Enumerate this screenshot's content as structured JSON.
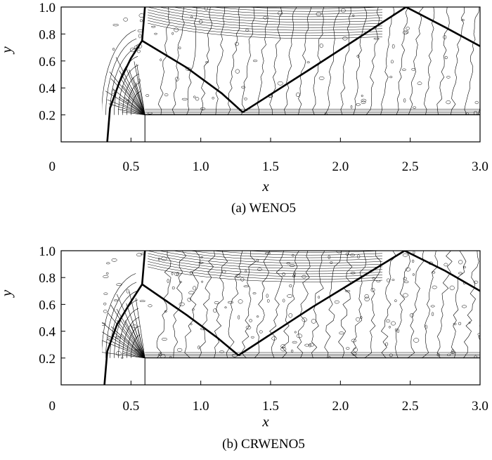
{
  "chart_data": [
    {
      "type": "contour",
      "title": "(a) WENO5",
      "xlabel": "x",
      "ylabel": "y",
      "xlim": [
        0,
        3.0
      ],
      "ylim": [
        0,
        1.0
      ],
      "xticks": [
        "0",
        "0.5",
        "1.0",
        "1.5",
        "2.0",
        "2.5",
        "3.0"
      ],
      "xtick_values": [
        0,
        0.5,
        1.0,
        1.5,
        2.0,
        2.5,
        3.0
      ],
      "yticks": [
        "0.2",
        "0.4",
        "0.6",
        "0.8",
        "1.0"
      ],
      "ytick_values": [
        0.2,
        0.4,
        0.6,
        0.8,
        1.0
      ],
      "step": {
        "x": 0.6,
        "height": 0.2
      },
      "shocks": [
        [
          [
            0.33,
            0.0
          ],
          [
            0.35,
            0.25
          ],
          [
            0.42,
            0.45
          ],
          [
            0.5,
            0.62
          ],
          [
            0.58,
            0.75
          ],
          [
            0.6,
            1.0
          ]
        ],
        [
          [
            0.58,
            0.75
          ],
          [
            0.9,
            0.55
          ],
          [
            1.15,
            0.36
          ],
          [
            1.3,
            0.22
          ]
        ],
        [
          [
            1.3,
            0.22
          ],
          [
            1.8,
            0.55
          ],
          [
            2.47,
            1.0
          ]
        ],
        [
          [
            2.47,
            1.0
          ],
          [
            2.75,
            0.85
          ],
          [
            3.0,
            0.71
          ]
        ]
      ],
      "noise": 0.2
    },
    {
      "type": "contour",
      "title": "(b) CRWENO5",
      "xlabel": "x",
      "ylabel": "y",
      "xlim": [
        0,
        3.0
      ],
      "ylim": [
        0,
        1.0
      ],
      "xticks": [
        "0",
        "0.5",
        "1.0",
        "1.5",
        "2.0",
        "2.5",
        "3.0"
      ],
      "xtick_values": [
        0,
        0.5,
        1.0,
        1.5,
        2.0,
        2.5,
        3.0
      ],
      "yticks": [
        "0.2",
        "0.4",
        "0.6",
        "0.8",
        "1.0"
      ],
      "ytick_values": [
        0.2,
        0.4,
        0.6,
        0.8,
        1.0
      ],
      "step": {
        "x": 0.6,
        "height": 0.2
      },
      "shocks": [
        [
          [
            0.31,
            0.0
          ],
          [
            0.33,
            0.25
          ],
          [
            0.4,
            0.45
          ],
          [
            0.5,
            0.62
          ],
          [
            0.58,
            0.75
          ],
          [
            0.6,
            1.0
          ]
        ],
        [
          [
            0.58,
            0.75
          ],
          [
            0.9,
            0.52
          ],
          [
            1.12,
            0.35
          ],
          [
            1.27,
            0.22
          ]
        ],
        [
          [
            1.27,
            0.22
          ],
          [
            1.8,
            0.58
          ],
          [
            2.46,
            1.0
          ]
        ],
        [
          [
            2.46,
            1.0
          ],
          [
            2.75,
            0.85
          ],
          [
            3.0,
            0.7
          ]
        ]
      ],
      "noise": 0.6
    }
  ]
}
